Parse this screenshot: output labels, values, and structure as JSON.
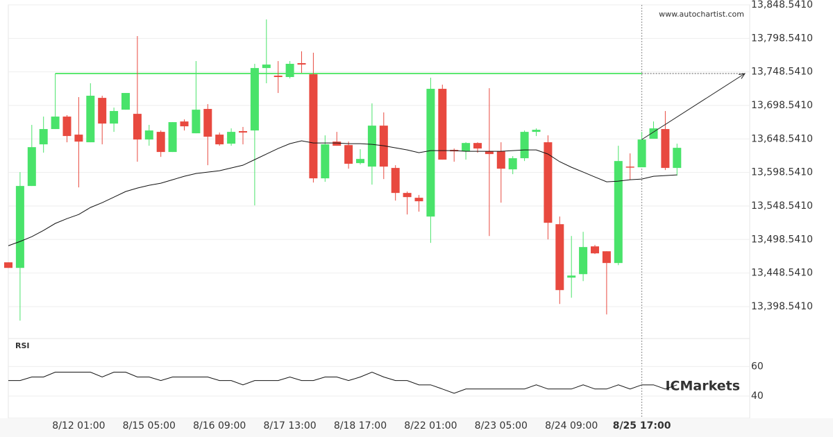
{
  "chart_data": [
    {
      "type": "candlestick",
      "source": "www.autochartist.com",
      "categories": [
        null,
        null,
        null,
        null,
        null,
        null,
        "8/12 01:00",
        null,
        null,
        null,
        null,
        null,
        "8/15 05:00",
        null,
        null,
        null,
        null,
        null,
        "8/16 09:00",
        null,
        null,
        null,
        null,
        null,
        "8/17 13:00",
        null,
        null,
        null,
        null,
        null,
        "8/18 17:00",
        null,
        null,
        null,
        null,
        null,
        "8/22 01:00",
        null,
        null,
        null,
        null,
        null,
        "8/23 05:00",
        null,
        null,
        null,
        null,
        null,
        "8/24 09:00",
        null,
        null,
        null,
        null,
        null,
        "8/25 17:00",
        null,
        null,
        null
      ],
      "current_index": 54,
      "open": [
        13464.5,
        13456.2,
        13578.4,
        13640.5,
        13663.3,
        13681.9,
        13655.0,
        13643.6,
        13709.8,
        13671.5,
        13692.2,
        13686.0,
        13647.7,
        13659.1,
        13629.1,
        13674.6,
        13657.0,
        13693.3,
        13655.0,
        13641.5,
        13660.2,
        13661.2,
        13754.3,
        13743.0,
        13740.9,
        13761.6,
        13745.0,
        13589.8,
        13644.6,
        13639.4,
        13612.5,
        13607.3,
        13668.4,
        13605.3,
        13568.0,
        13560.8,
        13532.8,
        13723.3,
        13632.2,
        13630.1,
        13642.5,
        13630.1,
        13630.1,
        13603.2,
        13619.8,
        13659.1,
        13643.6,
        13521.4,
        13441.7,
        13446.9,
        13488.3,
        13481.0,
        13463.5,
        13607.3,
        13606.3,
        13648.8,
        13663.3,
        13605.3
      ],
      "high": [
        13464.5,
        13599.1,
        13669.5,
        13681.9,
        13746.1,
        13684.0,
        13710.9,
        13731.6,
        13713.0,
        13695.3,
        13717.1,
        13802.0,
        13669.5,
        13661.2,
        13673.6,
        13677.7,
        13764.7,
        13700.5,
        13658.1,
        13664.3,
        13666.4,
        13760.6,
        13826.8,
        13764.7,
        13764.7,
        13779.2,
        13777.1,
        13653.9,
        13659.1,
        13644.6,
        13633.2,
        13701.6,
        13688.1,
        13609.4,
        13570.1,
        13564.9,
        13739.9,
        13729.5,
        13634.3,
        13643.6,
        13643.6,
        13724.3,
        13643.6,
        13622.9,
        13661.2,
        13664.3,
        13653.9,
        13532.8,
        13503.8,
        13510.0,
        13490.4,
        13481.0,
        13638.4,
        13627.0,
        13659.1,
        13674.6,
        13690.2,
        13641.5
      ],
      "low": [
        13456.2,
        13377.5,
        13578.4,
        13628.1,
        13663.3,
        13643.6,
        13576.3,
        13643.6,
        13640.5,
        13659.1,
        13692.2,
        13614.6,
        13638.4,
        13621.8,
        13629.1,
        13661.2,
        13657.0,
        13609.4,
        13638.4,
        13638.4,
        13640.5,
        13549.4,
        13731.6,
        13717.1,
        13738.8,
        13747.1,
        13583.5,
        13584.6,
        13638.4,
        13604.2,
        13610.5,
        13580.4,
        13588.7,
        13556.6,
        13535.9,
        13540.1,
        13493.5,
        13617.7,
        13614.6,
        13617.7,
        13628.1,
        13503.8,
        13553.5,
        13596.0,
        13615.6,
        13652.9,
        13498.7,
        13402.4,
        13411.7,
        13436.5,
        13476.9,
        13386.8,
        13460.3,
        13587.7,
        13606.3,
        13648.8,
        13602.2,
        13593.9
      ],
      "close": [
        13456.2,
        13578.4,
        13636.3,
        13663.3,
        13681.9,
        13652.9,
        13644.6,
        13713.0,
        13671.5,
        13690.2,
        13717.1,
        13647.7,
        13661.2,
        13629.1,
        13673.6,
        13667.4,
        13692.2,
        13651.9,
        13640.5,
        13659.1,
        13658.1,
        13754.3,
        13759.5,
        13740.9,
        13760.6,
        13759.5,
        13589.8,
        13640.5,
        13638.4,
        13611.5,
        13618.7,
        13668.4,
        13607.3,
        13568.0,
        13561.8,
        13555.6,
        13723.3,
        13617.7,
        13630.1,
        13642.5,
        13634.3,
        13626.0,
        13604.2,
        13619.8,
        13659.1,
        13662.2,
        13523.5,
        13423.1,
        13444.8,
        13487.3,
        13477.9,
        13463.5,
        13615.6,
        13606.3,
        13647.7,
        13664.3,
        13605.3,
        13635.3
      ],
      "ma": [
        13489.3,
        13495.6,
        13502.8,
        13512.1,
        13522.5,
        13529.7,
        13535.9,
        13546.3,
        13553.5,
        13561.8,
        13570.1,
        13575.3,
        13579.4,
        13582.5,
        13587.7,
        13592.9,
        13597.0,
        13599.1,
        13601.1,
        13605.3,
        13609.4,
        13617.7,
        13626.0,
        13634.3,
        13641.5,
        13645.7,
        13642.5,
        13642.5,
        13642.5,
        13641.5,
        13641.5,
        13640.5,
        13638.4,
        13635.3,
        13632.2,
        13628.1,
        13631.2,
        13631.2,
        13631.2,
        13630.1,
        13630.1,
        13630.1,
        13630.1,
        13631.2,
        13632.2,
        13632.2,
        13626.0,
        13614.6,
        13606.3,
        13599.1,
        13591.8,
        13584.6,
        13585.6,
        13587.7,
        13588.7,
        13592.9,
        13593.9,
        13594.9
      ],
      "resistance": 13746.1,
      "up_color": "#49e36a",
      "down_color": "#e8493f",
      "ma_color": "#111111",
      "resistance_color": "#5ce870",
      "ylim": [
        13354,
        13848.541
      ],
      "yticks": [
        {
          "value": 13848.541,
          "label": "13,848.5410"
        },
        {
          "value": 13798.541,
          "label": "13,798.5410"
        },
        {
          "value": 13748.541,
          "label": "13,748.5410"
        },
        {
          "value": 13698.541,
          "label": "13,698.5410"
        },
        {
          "value": 13648.541,
          "label": "13,648.5410"
        },
        {
          "value": 13598.541,
          "label": "13,598.5410"
        },
        {
          "value": 13548.541,
          "label": "13,548.5410"
        },
        {
          "value": 13498.541,
          "label": "13,498.5410"
        },
        {
          "value": 13448.541,
          "label": "13,448.5410"
        },
        {
          "value": 13398.541,
          "label": "13,398.5410"
        }
      ],
      "grid": true
    },
    {
      "type": "line",
      "title": "RSI",
      "watermark": "ICMarkets",
      "values": [
        50.5,
        50.5,
        52.9,
        52.9,
        56.2,
        56.2,
        56.2,
        56.2,
        52.9,
        56.2,
        56.2,
        52.9,
        52.9,
        50.5,
        52.9,
        52.9,
        52.9,
        52.9,
        50.5,
        50.5,
        47.6,
        50.5,
        50.5,
        50.5,
        52.9,
        50.5,
        50.5,
        52.9,
        52.9,
        50.5,
        52.9,
        56.2,
        52.9,
        50.5,
        50.5,
        47.6,
        47.6,
        44.8,
        41.9,
        44.8,
        44.8,
        44.8,
        44.8,
        44.8,
        44.8,
        47.6,
        44.8,
        44.8,
        44.8,
        47.6,
        44.8,
        44.8,
        47.6,
        44.8,
        47.6,
        47.6,
        44.8,
        47.6
      ],
      "color": "#111111",
      "ylim": [
        25,
        78
      ],
      "yticks": [
        60,
        40
      ],
      "grid": true
    }
  ]
}
